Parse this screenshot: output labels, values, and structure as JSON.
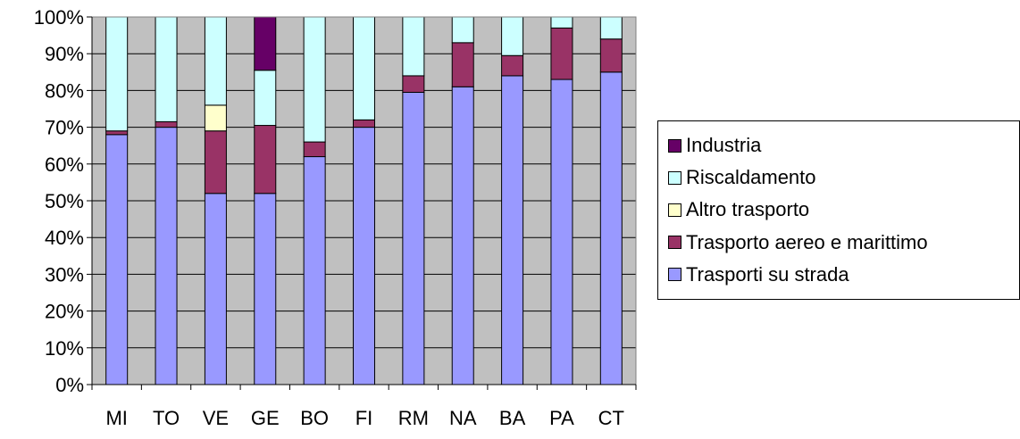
{
  "chart_data": {
    "type": "bar",
    "stacked": true,
    "percent": true,
    "categories": [
      "MI",
      "TO",
      "VE",
      "GE",
      "BO",
      "FI",
      "RM",
      "NA",
      "BA",
      "PA",
      "CT"
    ],
    "series": [
      {
        "name": "Trasporti su strada",
        "color": "#9999ff",
        "values": [
          68,
          70,
          52,
          52,
          62,
          70,
          79.5,
          81,
          84,
          83,
          85
        ]
      },
      {
        "name": "Trasporto aereo e marittimo",
        "color": "#993366",
        "values": [
          1,
          1.5,
          17,
          18.5,
          4,
          2,
          4.5,
          12,
          5.5,
          14,
          9
        ]
      },
      {
        "name": "Altro trasporto",
        "color": "#ffffcc",
        "values": [
          0,
          0,
          7,
          0,
          0,
          0,
          0,
          0,
          0,
          0,
          0
        ]
      },
      {
        "name": "Riscaldamento",
        "color": "#ccffff",
        "values": [
          31,
          28.5,
          24,
          15,
          34,
          28,
          16,
          7,
          10.5,
          3,
          6
        ]
      },
      {
        "name": "Industria",
        "color": "#660066",
        "values": [
          0,
          0,
          0,
          14.5,
          0,
          0,
          0,
          0,
          0,
          0,
          0
        ]
      }
    ],
    "yticks": [
      "0%",
      "10%",
      "20%",
      "30%",
      "40%",
      "50%",
      "60%",
      "70%",
      "80%",
      "90%",
      "100%"
    ],
    "ylim": [
      0,
      100
    ],
    "plot_background": "#c0c0c0",
    "grid": true,
    "legend_position": "right",
    "legend_order": [
      "Industria",
      "Riscaldamento",
      "Altro trasporto",
      "Trasporto aereo e marittimo",
      "Trasporti su strada"
    ]
  }
}
